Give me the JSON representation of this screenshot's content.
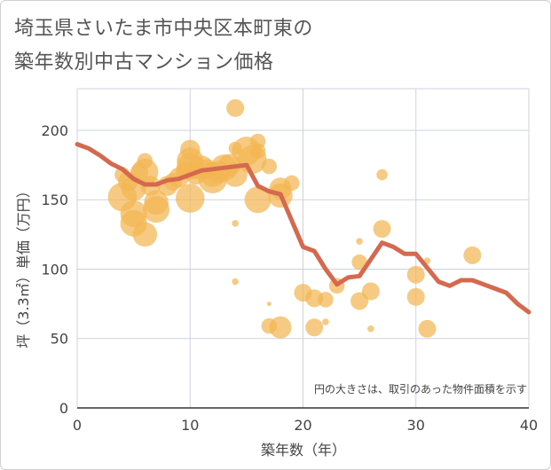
{
  "title_line1": "埼玉県さいたま市中央区本町東の",
  "title_line2": "築年数別中古マンション価格",
  "chart_data": {
    "type": "scatter",
    "xlabel": "築年数（年）",
    "ylabel": "坪（3.3㎡）単価（万円）",
    "xlim": [
      0,
      40
    ],
    "ylim": [
      0,
      230
    ],
    "xticks": [
      0,
      10,
      20,
      30,
      40
    ],
    "yticks": [
      0,
      50,
      100,
      150,
      200
    ],
    "grid": true,
    "note": "円の大きさは、取引のあった物件面積を示す",
    "colors": {
      "bubble": "#f2b552",
      "line": "#d4694f",
      "grid": "#cdd3dd",
      "plot_bg": "#ffffff"
    },
    "points": [
      {
        "x": 4,
        "y": 168,
        "s": 7
      },
      {
        "x": 4,
        "y": 152,
        "s": 13
      },
      {
        "x": 4.5,
        "y": 163,
        "s": 9
      },
      {
        "x": 5,
        "y": 158,
        "s": 11
      },
      {
        "x": 5,
        "y": 140,
        "s": 12
      },
      {
        "x": 5,
        "y": 133,
        "s": 12
      },
      {
        "x": 5.5,
        "y": 170,
        "s": 8
      },
      {
        "x": 6,
        "y": 178,
        "s": 7
      },
      {
        "x": 6,
        "y": 170,
        "s": 12
      },
      {
        "x": 6,
        "y": 125,
        "s": 11
      },
      {
        "x": 6.5,
        "y": 160,
        "s": 9
      },
      {
        "x": 7,
        "y": 148,
        "s": 11
      },
      {
        "x": 7,
        "y": 143,
        "s": 12
      },
      {
        "x": 8,
        "y": 160,
        "s": 9
      },
      {
        "x": 8.5,
        "y": 163,
        "s": 8
      },
      {
        "x": 9,
        "y": 166,
        "s": 9
      },
      {
        "x": 9.5,
        "y": 171,
        "s": 8
      },
      {
        "x": 10,
        "y": 186,
        "s": 9
      },
      {
        "x": 10,
        "y": 178,
        "s": 12
      },
      {
        "x": 10,
        "y": 174,
        "s": 12
      },
      {
        "x": 10,
        "y": 151,
        "s": 13
      },
      {
        "x": 10.5,
        "y": 168,
        "s": 9
      },
      {
        "x": 11,
        "y": 173,
        "s": 11
      },
      {
        "x": 11.5,
        "y": 172,
        "s": 9
      },
      {
        "x": 12,
        "y": 165,
        "s": 13
      },
      {
        "x": 12,
        "y": 168,
        "s": 11
      },
      {
        "x": 12.5,
        "y": 170,
        "s": 10
      },
      {
        "x": 13,
        "y": 173,
        "s": 12
      },
      {
        "x": 13.5,
        "y": 175,
        "s": 10
      },
      {
        "x": 14,
        "y": 216,
        "s": 8
      },
      {
        "x": 14,
        "y": 187,
        "s": 6
      },
      {
        "x": 14,
        "y": 168,
        "s": 11
      },
      {
        "x": 14,
        "y": 133,
        "s": 3
      },
      {
        "x": 14,
        "y": 91,
        "s": 3
      },
      {
        "x": 15,
        "y": 185,
        "s": 13
      },
      {
        "x": 15.5,
        "y": 179,
        "s": 13
      },
      {
        "x": 16,
        "y": 192,
        "s": 7
      },
      {
        "x": 16,
        "y": 185,
        "s": 7
      },
      {
        "x": 16,
        "y": 150,
        "s": 12
      },
      {
        "x": 17,
        "y": 174,
        "s": 7
      },
      {
        "x": 17,
        "y": 75,
        "s": 2
      },
      {
        "x": 17,
        "y": 59,
        "s": 7
      },
      {
        "x": 18,
        "y": 158,
        "s": 10
      },
      {
        "x": 18,
        "y": 153,
        "s": 11
      },
      {
        "x": 18,
        "y": 58,
        "s": 10
      },
      {
        "x": 19,
        "y": 162,
        "s": 7
      },
      {
        "x": 20,
        "y": 83,
        "s": 8
      },
      {
        "x": 21,
        "y": 79,
        "s": 8
      },
      {
        "x": 21,
        "y": 58,
        "s": 8
      },
      {
        "x": 22,
        "y": 78,
        "s": 7
      },
      {
        "x": 22,
        "y": 62,
        "s": 3
      },
      {
        "x": 23,
        "y": 88,
        "s": 7
      },
      {
        "x": 25,
        "y": 120,
        "s": 3
      },
      {
        "x": 25,
        "y": 105,
        "s": 7
      },
      {
        "x": 25,
        "y": 77,
        "s": 8
      },
      {
        "x": 26,
        "y": 84,
        "s": 8
      },
      {
        "x": 26,
        "y": 57,
        "s": 3
      },
      {
        "x": 27,
        "y": 168,
        "s": 5
      },
      {
        "x": 27,
        "y": 129,
        "s": 8
      },
      {
        "x": 30,
        "y": 96,
        "s": 8
      },
      {
        "x": 30,
        "y": 80,
        "s": 8
      },
      {
        "x": 31,
        "y": 106,
        "s": 3
      },
      {
        "x": 31,
        "y": 57,
        "s": 8
      },
      {
        "x": 35,
        "y": 110,
        "s": 8
      }
    ],
    "line": {
      "x": [
        0,
        1,
        2,
        3,
        4,
        5,
        6,
        7,
        8,
        9,
        10,
        11,
        12,
        13,
        14,
        15,
        16,
        17,
        18,
        19,
        20,
        21,
        22,
        23,
        24,
        25,
        26,
        27,
        28,
        29,
        30,
        31,
        32,
        33,
        34,
        35,
        36,
        37,
        38,
        39,
        40
      ],
      "y": [
        190,
        187,
        182,
        176,
        172,
        165,
        161,
        161,
        164,
        165,
        168,
        171,
        172,
        173,
        174,
        175,
        160,
        156,
        154,
        135,
        116,
        113,
        100,
        89,
        94,
        95,
        107,
        119,
        116,
        111,
        111,
        101,
        91,
        88,
        92,
        92,
        89,
        86,
        83,
        75,
        69
      ]
    }
  }
}
